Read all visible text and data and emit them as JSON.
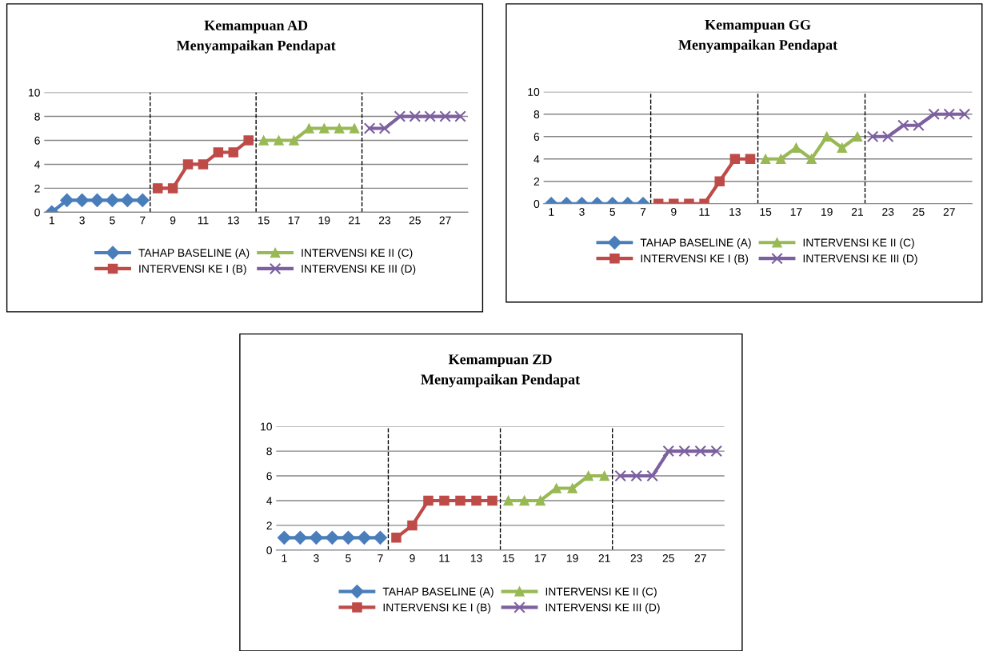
{
  "chart_data": [
    {
      "type": "line",
      "title": "Kemampuan AD\nMenyampaikan Pendapat",
      "xlim": [
        0.5,
        28.5
      ],
      "xticks": [
        1,
        3,
        5,
        7,
        9,
        11,
        13,
        15,
        17,
        19,
        21,
        23,
        25,
        27
      ],
      "ylim": [
        0,
        10
      ],
      "yticks": [
        0,
        2,
        4,
        6,
        8,
        10
      ],
      "grid": "y",
      "legend": "bottom",
      "ref_lines": [
        {
          "axis": "x",
          "value": 7.5,
          "color": "#000000",
          "line_style": "dashed"
        },
        {
          "axis": "x",
          "value": 14.5,
          "color": "#000000",
          "line_style": "dashed"
        },
        {
          "axis": "x",
          "value": 21.5,
          "color": "#000000",
          "line_style": "dashed"
        }
      ],
      "series": [
        {
          "name": "TAHAP BASELINE (A)",
          "color": "#4a7ebb",
          "marker": "diamond",
          "x": [
            1,
            2,
            3,
            4,
            5,
            6,
            7
          ],
          "values": [
            0,
            1,
            1,
            1,
            1,
            1,
            1
          ]
        },
        {
          "name": "INTERVENSI KE I (B)",
          "color": "#be4b48",
          "marker": "square",
          "x": [
            8,
            9,
            10,
            11,
            12,
            13,
            14
          ],
          "values": [
            2,
            2,
            4,
            4,
            5,
            5,
            6
          ]
        },
        {
          "name": "INTERVENSI KE II (C)",
          "color": "#98b954",
          "marker": "triangle",
          "x": [
            15,
            16,
            17,
            18,
            19,
            20,
            21
          ],
          "values": [
            6,
            6,
            6,
            7,
            7,
            7,
            7
          ]
        },
        {
          "name": "INTERVENSI KE III (D)",
          "color": "#7d60a0",
          "marker": "cross",
          "x": [
            22,
            23,
            24,
            25,
            26,
            27,
            28
          ],
          "values": [
            7,
            7,
            8,
            8,
            8,
            8,
            8
          ]
        }
      ]
    },
    {
      "type": "line",
      "title": "Kemampuan GG\nMenyampaikan Pendapat",
      "xlim": [
        0.5,
        28.5
      ],
      "xticks": [
        1,
        3,
        5,
        7,
        9,
        11,
        13,
        15,
        17,
        19,
        21,
        23,
        25,
        27
      ],
      "ylim": [
        0,
        10
      ],
      "yticks": [
        0,
        2,
        4,
        6,
        8,
        10
      ],
      "grid": "y",
      "legend": "bottom",
      "ref_lines": [
        {
          "axis": "x",
          "value": 7.5,
          "color": "#000000",
          "line_style": "dashed"
        },
        {
          "axis": "x",
          "value": 14.5,
          "color": "#000000",
          "line_style": "dashed"
        },
        {
          "axis": "x",
          "value": 21.5,
          "color": "#000000",
          "line_style": "dashed"
        }
      ],
      "series": [
        {
          "name": "TAHAP BASELINE (A)",
          "color": "#4a7ebb",
          "marker": "diamond",
          "x": [
            1,
            2,
            3,
            4,
            5,
            6,
            7
          ],
          "values": [
            0,
            0,
            0,
            0,
            0,
            0,
            0
          ]
        },
        {
          "name": "INTERVENSI KE I (B)",
          "color": "#be4b48",
          "marker": "square",
          "x": [
            8,
            9,
            10,
            11,
            12,
            13,
            14
          ],
          "values": [
            0,
            0,
            0,
            0,
            2,
            4,
            4
          ]
        },
        {
          "name": "INTERVENSI KE II (C)",
          "color": "#98b954",
          "marker": "triangle",
          "x": [
            15,
            16,
            17,
            18,
            19,
            20,
            21
          ],
          "values": [
            4,
            4,
            5,
            4,
            6,
            5,
            6
          ]
        },
        {
          "name": "INTERVENSI KE III (D)",
          "color": "#7d60a0",
          "marker": "cross",
          "x": [
            22,
            23,
            24,
            25,
            26,
            27,
            28
          ],
          "values": [
            6,
            6,
            7,
            7,
            8,
            8,
            8
          ]
        }
      ]
    },
    {
      "type": "line",
      "title": "Kemampuan ZD\nMenyampaikan Pendapat",
      "xlim": [
        0.5,
        28.5
      ],
      "xticks": [
        1,
        3,
        5,
        7,
        9,
        11,
        13,
        15,
        17,
        19,
        21,
        23,
        25,
        27
      ],
      "ylim": [
        0,
        10
      ],
      "yticks": [
        0,
        2,
        4,
        6,
        8,
        10
      ],
      "grid": "y",
      "legend": "bottom",
      "ref_lines": [
        {
          "axis": "x",
          "value": 7.5,
          "color": "#000000",
          "line_style": "dashed"
        },
        {
          "axis": "x",
          "value": 14.5,
          "color": "#000000",
          "line_style": "dashed"
        },
        {
          "axis": "x",
          "value": 21.5,
          "color": "#000000",
          "line_style": "dashed"
        }
      ],
      "series": [
        {
          "name": "TAHAP BASELINE (A)",
          "color": "#4a7ebb",
          "marker": "diamond",
          "x": [
            1,
            2,
            3,
            4,
            5,
            6,
            7
          ],
          "values": [
            1,
            1,
            1,
            1,
            1,
            1,
            1
          ]
        },
        {
          "name": "INTERVENSI KE I (B)",
          "color": "#be4b48",
          "marker": "square",
          "x": [
            8,
            9,
            10,
            11,
            12,
            13,
            14
          ],
          "values": [
            1,
            2,
            4,
            4,
            4,
            4,
            4
          ]
        },
        {
          "name": "INTERVENSI KE II (C)",
          "color": "#98b954",
          "marker": "triangle",
          "x": [
            15,
            16,
            17,
            18,
            19,
            20,
            21
          ],
          "values": [
            4,
            4,
            4,
            5,
            5,
            6,
            6
          ]
        },
        {
          "name": "INTERVENSI KE III (D)",
          "color": "#7d60a0",
          "marker": "cross",
          "x": [
            22,
            23,
            24,
            25,
            26,
            27,
            28
          ],
          "values": [
            6,
            6,
            6,
            8,
            8,
            8,
            8
          ]
        }
      ]
    }
  ]
}
